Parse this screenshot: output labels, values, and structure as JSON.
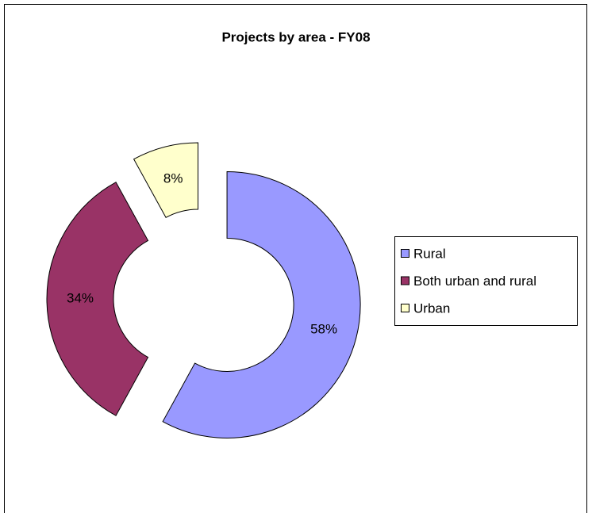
{
  "chart_data": {
    "type": "pie",
    "title": "Projects by area - FY08",
    "categories": [
      "Rural",
      "Both urban and rural",
      "Urban"
    ],
    "values": [
      58,
      34,
      8
    ],
    "value_labels": [
      "58%",
      "34%",
      "8%"
    ],
    "colors": [
      "#9999ff",
      "#993366",
      "#ffffcc"
    ],
    "legend": "right"
  }
}
